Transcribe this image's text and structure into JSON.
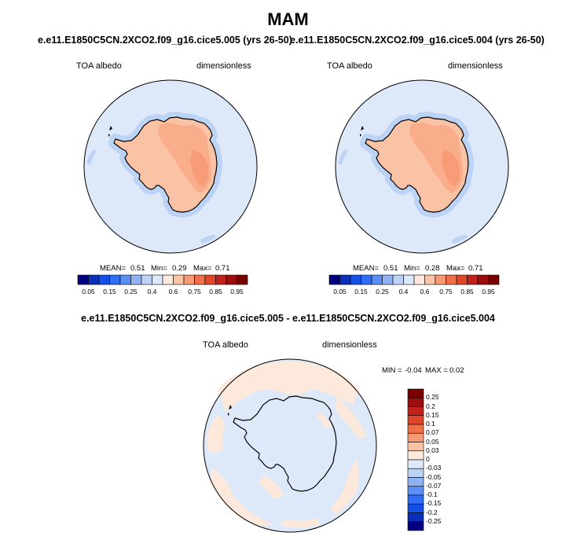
{
  "header": {
    "season": "MAM",
    "left_run": "e.e11.E1850C5CN.2XCO2.f09_g16.cice5.005 (yrs 26-50)",
    "right_run": "e.e11.E1850C5CN.2XCO2.f09_g16.cice5.004 (yrs 26-50)",
    "diff_title": "e.e11.E1850C5CN.2XCO2.f09_g16.cice5.005 - e.e11.E1850C5CN.2XCO2.f09_g16.cice5.004"
  },
  "chart_data": [
    {
      "type": "heatmap",
      "projection": "south-polar-stereographic",
      "variable": "TOA albedo",
      "units": "dimensionless",
      "stats": {
        "mean_label": "MEAN=",
        "mean": "0.51",
        "min_label": "Min=",
        "min": "0.29",
        "max_label": "Max=",
        "max": "0.71"
      },
      "colorbar": {
        "ticks": [
          "0.05",
          "0.15",
          "0.25",
          "0.4",
          "0.6",
          "0.75",
          "0.85",
          "0.95"
        ],
        "levels": [
          0.05,
          0.1,
          0.15,
          0.2,
          0.25,
          0.3,
          0.4,
          0.5,
          0.6,
          0.7,
          0.75,
          0.8,
          0.85,
          0.9,
          0.95
        ],
        "colors": [
          "#000080",
          "#0a2fb8",
          "#1450e6",
          "#2f6ef6",
          "#5a90f6",
          "#8eb2f4",
          "#bcd3f5",
          "#dde9f8",
          "#fde9dc",
          "#fbc3a5",
          "#f79a74",
          "#f06e48",
          "#e0462a",
          "#c0221a",
          "#9c0e0e",
          "#7a0000"
        ]
      },
      "field": {
        "ocean": 0.4,
        "sea_ice_band": 0.3,
        "continent": 0.6,
        "interior": 0.7
      }
    },
    {
      "type": "heatmap",
      "projection": "south-polar-stereographic",
      "variable": "TOA albedo",
      "units": "dimensionless",
      "stats": {
        "mean_label": "MEAN=",
        "mean": "0.51",
        "min_label": "Min=",
        "min": "0.28",
        "max_label": "Max=",
        "max": "0.71"
      },
      "colorbar": {
        "ticks": [
          "0.05",
          "0.15",
          "0.25",
          "0.4",
          "0.6",
          "0.75",
          "0.85",
          "0.95"
        ],
        "levels": [
          0.05,
          0.1,
          0.15,
          0.2,
          0.25,
          0.3,
          0.4,
          0.5,
          0.6,
          0.7,
          0.75,
          0.8,
          0.85,
          0.9,
          0.95
        ],
        "colors": [
          "#000080",
          "#0a2fb8",
          "#1450e6",
          "#2f6ef6",
          "#5a90f6",
          "#8eb2f4",
          "#bcd3f5",
          "#dde9f8",
          "#fde9dc",
          "#fbc3a5",
          "#f79a74",
          "#f06e48",
          "#e0462a",
          "#c0221a",
          "#9c0e0e",
          "#7a0000"
        ]
      },
      "field": {
        "ocean": 0.4,
        "sea_ice_band": 0.3,
        "continent": 0.6,
        "interior": 0.7
      }
    },
    {
      "type": "heatmap",
      "projection": "south-polar-stereographic",
      "variable": "TOA albedo",
      "units": "dimensionless",
      "stats": {
        "min_label": "MIN =",
        "min": "-0.04",
        "max_label": "MAX =",
        "max": "0.02"
      },
      "colorbar": {
        "orientation": "vertical",
        "ticks": [
          "0.25",
          "0.2",
          "0.15",
          "0.1",
          "0.07",
          "0.05",
          "0.03",
          "0",
          "-0.03",
          "-0.05",
          "-0.07",
          "-0.1",
          "-0.15",
          "-0.2",
          "-0.25"
        ],
        "colors": [
          "#7a0000",
          "#9c0e0e",
          "#c0221a",
          "#e0462a",
          "#f06e48",
          "#f79a74",
          "#fbc3a5",
          "#fde9dc",
          "#dde9f8",
          "#bcd3f5",
          "#8eb2f4",
          "#5a90f6",
          "#2f6ef6",
          "#1450e6",
          "#0a2fb8",
          "#000080"
        ]
      },
      "field": {
        "positive_patches": 0.01,
        "negative_patches": -0.01
      }
    }
  ]
}
